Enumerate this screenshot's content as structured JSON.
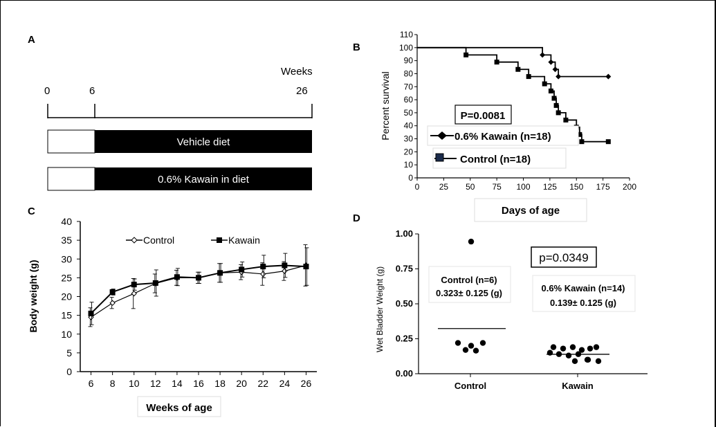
{
  "panels": {
    "a": "A",
    "b": "B",
    "c": "C",
    "d": "D"
  },
  "panel_a": {
    "weeks_label": "Weeks",
    "ticks": [
      "0",
      "6",
      "26"
    ],
    "bars": [
      {
        "label": "Vehicle diet",
        "white_until_week": 6
      },
      {
        "label": "0.6% Kawain in diet",
        "white_until_week": 6
      }
    ]
  },
  "chart_data": [
    {
      "panel": "B",
      "type": "line",
      "step": true,
      "xlabel": "Days of age",
      "ylabel": "Percent survival",
      "xlim": [
        0,
        200
      ],
      "ylim": [
        0,
        110
      ],
      "xticks": [
        0,
        25,
        50,
        75,
        100,
        125,
        150,
        175,
        200
      ],
      "yticks": [
        0,
        10,
        20,
        30,
        40,
        50,
        60,
        70,
        80,
        90,
        100,
        110
      ],
      "pvalue_label": "P=0.0081",
      "series": [
        {
          "name": "0.6% Kawain (n=18)",
          "marker": "diamond",
          "x": [
            0,
            118,
            126,
            130,
            133,
            180
          ],
          "y": [
            100,
            94.4,
            88.9,
            83.3,
            77.8,
            77.8
          ]
        },
        {
          "name": "Control (n=18)",
          "marker": "square",
          "x": [
            0,
            46,
            75,
            95,
            105,
            120,
            126,
            129,
            131,
            133,
            140,
            150,
            153,
            155,
            180
          ],
          "y": [
            100,
            94.4,
            88.9,
            83.3,
            77.8,
            72.2,
            66.7,
            61.1,
            55.6,
            50,
            44.4,
            38.9,
            33.3,
            27.8,
            27.8
          ]
        }
      ]
    },
    {
      "panel": "C",
      "type": "line",
      "xlabel": "Weeks of age",
      "ylabel": "Body weight (g)",
      "xlim": [
        5,
        27
      ],
      "ylim": [
        0,
        40
      ],
      "xticks": [
        6,
        8,
        10,
        12,
        14,
        16,
        18,
        20,
        22,
        24,
        26
      ],
      "yticks": [
        0,
        5,
        10,
        15,
        20,
        25,
        30,
        35,
        40
      ],
      "legend": "top",
      "series": [
        {
          "name": "Control",
          "marker": "open-diamond",
          "x": [
            6,
            8,
            10,
            12,
            14,
            16,
            18,
            20,
            22,
            24,
            26
          ],
          "y": [
            14.5,
            18.3,
            20.8,
            23.5,
            25,
            25,
            26.3,
            26.5,
            26,
            26.8,
            28.3
          ],
          "err": [
            2.5,
            1.5,
            4,
            2.5,
            2,
            1.5,
            2.5,
            2,
            3,
            2.5,
            5.5
          ]
        },
        {
          "name": "Kawain",
          "marker": "square",
          "x": [
            6,
            8,
            10,
            12,
            14,
            16,
            18,
            20,
            22,
            24,
            26
          ],
          "y": [
            15.5,
            21.2,
            23.2,
            23.6,
            25.2,
            25,
            26.3,
            27.2,
            28,
            28.3,
            28
          ],
          "err": [
            3,
            0.8,
            1.5,
            3.5,
            2.3,
            1.5,
            2.5,
            2,
            3,
            3.2,
            5
          ]
        }
      ]
    },
    {
      "panel": "D",
      "type": "scatter",
      "ylabel": "Wet Bladder Weight (g)",
      "categories": [
        "Control",
        "Kawain"
      ],
      "ylim": [
        0,
        1
      ],
      "yticks": [
        "0.00",
        "0.25",
        "0.50",
        "0.75",
        "1.00"
      ],
      "pvalue_label": "p=0.0349",
      "groups": [
        {
          "category": "Control",
          "label_line1": "Control (n=6)",
          "label_line2": "0.323± 0.125 (g)",
          "mean": 0.323,
          "points": [
            0.945,
            0.22,
            0.2,
            0.22,
            0.17,
            0.165
          ]
        },
        {
          "category": "Kawain",
          "label_line1": "0.6% Kawain (n=14)",
          "label_line2": "0.139± 0.125 (g)",
          "mean": 0.139,
          "points": [
            0.19,
            0.18,
            0.19,
            0.17,
            0.18,
            0.19,
            0.15,
            0.14,
            0.13,
            0.14,
            0.1,
            0.09,
            0.09,
            0.1
          ]
        }
      ]
    }
  ]
}
